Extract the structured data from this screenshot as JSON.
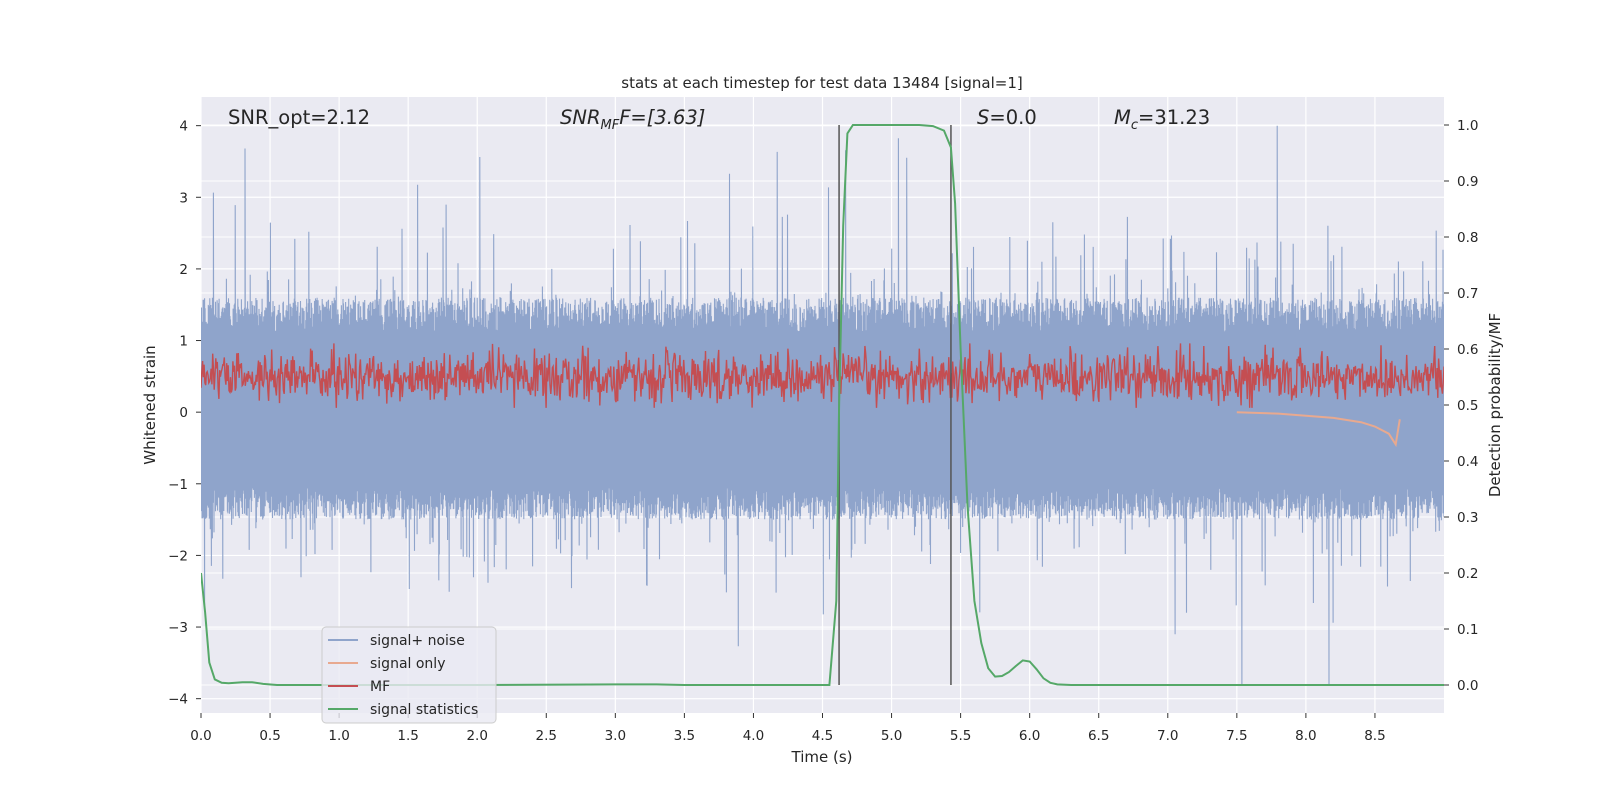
{
  "chart_data": {
    "type": "line",
    "title": "stats at each timestep for test data 13484 [signal=1]",
    "xlabel": "Time (s)",
    "ylabel_left": "Whitened strain",
    "ylabel_right": "Detection probability/MF",
    "xlim": [
      0.0,
      9.0
    ],
    "ylim_left": [
      -4.2,
      4.4
    ],
    "ylim_right": [
      -0.05,
      1.05
    ],
    "x_ticks": [
      0.0,
      0.5,
      1.0,
      1.5,
      2.0,
      2.5,
      3.0,
      3.5,
      4.0,
      4.5,
      5.0,
      5.5,
      6.0,
      6.5,
      7.0,
      7.5,
      8.0,
      8.5
    ],
    "x_tick_labels": [
      "0.0",
      "0.5",
      "1.0",
      "1.5",
      "2.0",
      "2.5",
      "3.0",
      "3.5",
      "4.0",
      "4.5",
      "5.0",
      "5.5",
      "6.0",
      "6.5",
      "7.0",
      "7.5",
      "8.0",
      "8.5"
    ],
    "y_left_ticks": [
      4,
      3,
      2,
      1,
      0,
      -1,
      -2,
      -3,
      -4
    ],
    "y_left_tick_labels": [
      "4",
      "3",
      "2",
      "1",
      "0",
      "−1",
      "−2",
      "−3",
      "−4"
    ],
    "y_right_ticks": [
      1.0,
      0.9,
      0.8,
      0.7,
      0.6,
      0.5,
      0.4,
      0.3,
      0.2,
      0.1,
      0.0
    ],
    "y_right_tick_labels": [
      "1.0",
      "0.9",
      "0.8",
      "0.7",
      "0.6",
      "0.5",
      "0.4",
      "0.3",
      "0.2",
      "0.1",
      "0.0"
    ],
    "annotations": {
      "snr_opt": "SNR_opt=2.12",
      "snr_mf_main": "SNR",
      "snr_mf_sub": "MF",
      "snr_mf_rest": "F=[3.63]",
      "s_main": "S",
      "s_rest": "=0.0",
      "mc_main": "M",
      "mc_sub": "c",
      "mc_rest": "=31.23"
    },
    "vertical_lines_x": [
      4.62,
      5.43
    ],
    "series": [
      {
        "name": "signal+ noise",
        "color": "#8fa4cb",
        "axis": "left",
        "description": "whitened noisy strain, values roughly between -3.8 and 4.0 (band -1.5 to 1.6 dense)",
        "band": [
          -1.5,
          1.6
        ],
        "extremes": [
          -3.8,
          4.0
        ]
      },
      {
        "name": "signal only",
        "color": "#e8a98f",
        "axis": "left",
        "x": [
          7.5,
          7.8,
          8.0,
          8.2,
          8.4,
          8.5,
          8.6,
          8.65,
          8.68
        ],
        "values": [
          0.0,
          -0.02,
          -0.05,
          -0.08,
          -0.14,
          -0.2,
          -0.3,
          -0.45,
          -0.1
        ]
      },
      {
        "name": "MF",
        "color": "#c44e52",
        "axis": "right",
        "band": [
          0.5,
          0.6
        ],
        "extremes": [
          0.495,
          0.61
        ]
      },
      {
        "name": "signal statistics",
        "color": "#55a868",
        "axis": "right",
        "x": [
          0.0,
          0.03,
          0.06,
          0.1,
          0.15,
          0.2,
          0.3,
          0.37,
          0.45,
          0.55,
          1.0,
          2.0,
          3.0,
          3.3,
          3.5,
          4.0,
          4.55,
          4.6,
          4.62,
          4.65,
          4.68,
          4.72,
          5.0,
          5.2,
          5.3,
          5.38,
          5.43,
          5.46,
          5.5,
          5.55,
          5.6,
          5.65,
          5.7,
          5.75,
          5.8,
          5.85,
          5.9,
          5.95,
          6.0,
          6.05,
          6.1,
          6.15,
          6.2,
          6.3,
          6.4,
          7.0,
          8.0,
          9.0
        ],
        "values": [
          0.2,
          0.13,
          0.04,
          0.01,
          0.004,
          0.003,
          0.005,
          0.005,
          0.002,
          0.0,
          0.0,
          0.0,
          0.001,
          0.001,
          0.0,
          0.0,
          0.0,
          0.15,
          0.5,
          0.82,
          0.985,
          1.0,
          1.0,
          1.0,
          0.998,
          0.99,
          0.96,
          0.86,
          0.6,
          0.32,
          0.15,
          0.075,
          0.03,
          0.015,
          0.016,
          0.023,
          0.034,
          0.044,
          0.042,
          0.028,
          0.012,
          0.004,
          0.001,
          0.0,
          0.0,
          0.0,
          0.0,
          0.0
        ]
      }
    ],
    "legend": [
      "signal+ noise",
      "signal only",
      "MF",
      "signal statistics"
    ],
    "legend_position": "lower-left",
    "grid": true,
    "colors": {
      "background": "#eaeaf2",
      "grid": "#ffffff",
      "vline": "#555555"
    }
  }
}
